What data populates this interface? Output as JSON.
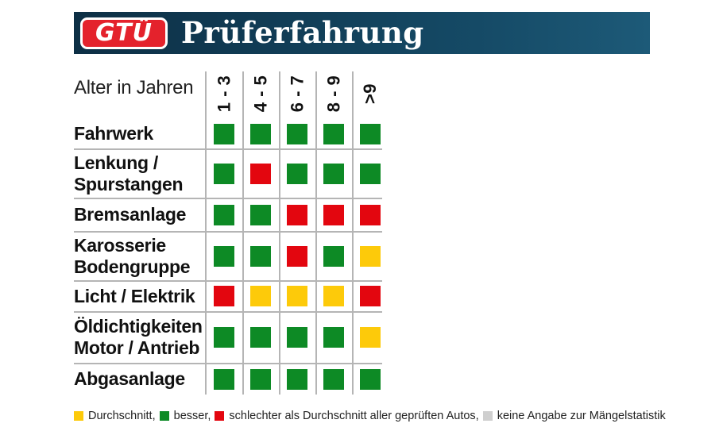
{
  "header": {
    "logo_text": "GTÜ",
    "title": "Prüferfahrung"
  },
  "colors": {
    "green": "#0d8a25",
    "red": "#e3060f",
    "yellow": "#fdca0a",
    "grey": "#cfcfcf",
    "header_bg": "#0d2f45",
    "logo_red": "#e4222c"
  },
  "chart_data": {
    "type": "table",
    "title": "Prüferfahrung",
    "column_axis_label": "Alter in Jahren",
    "columns": [
      "1 - 3",
      "4 - 5",
      "6 - 7",
      "8 - 9",
      ">9"
    ],
    "rows": [
      {
        "label_lines": [
          "Fahrwerk"
        ],
        "values": [
          "green",
          "green",
          "green",
          "green",
          "green"
        ]
      },
      {
        "label_lines": [
          "Lenkung /",
          "Spurstangen"
        ],
        "values": [
          "green",
          "red",
          "green",
          "green",
          "green"
        ]
      },
      {
        "label_lines": [
          "Bremsanlage"
        ],
        "values": [
          "green",
          "green",
          "red",
          "red",
          "red"
        ]
      },
      {
        "label_lines": [
          "Karosserie",
          "Bodengruppe"
        ],
        "values": [
          "green",
          "green",
          "red",
          "green",
          "yellow"
        ]
      },
      {
        "label_lines": [
          "Licht / Elektrik"
        ],
        "values": [
          "red",
          "yellow",
          "yellow",
          "yellow",
          "red"
        ]
      },
      {
        "label_lines": [
          "Öldichtigkeiten",
          "Motor / Antrieb"
        ],
        "values": [
          "green",
          "green",
          "green",
          "green",
          "yellow"
        ]
      },
      {
        "label_lines": [
          "Abgasanlage"
        ],
        "values": [
          "green",
          "green",
          "green",
          "green",
          "green"
        ]
      }
    ],
    "legend": [
      {
        "color": "yellow",
        "text": "Durchschnitt,"
      },
      {
        "color": "green",
        "text": "besser,"
      },
      {
        "color": "red",
        "text": "schlechter als Durchschnitt aller geprüften Autos,"
      },
      {
        "color": "grey",
        "text": "keine Angabe zur Mängelstatistik"
      }
    ]
  }
}
